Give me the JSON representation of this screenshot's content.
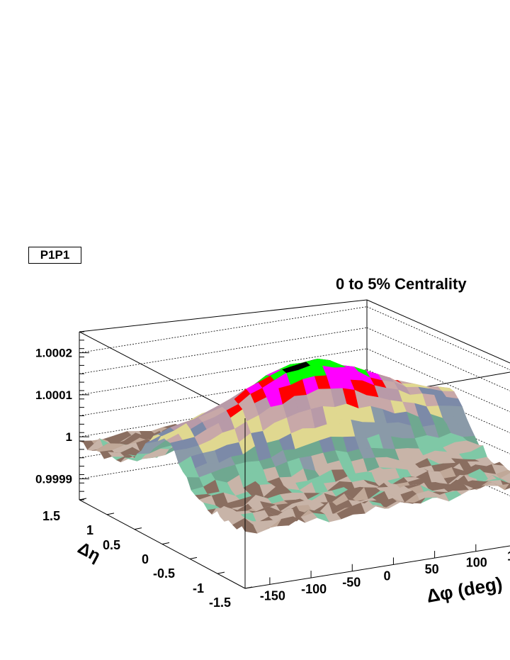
{
  "panel_label": "P1P1",
  "chart_data": {
    "type": "surface",
    "title": "0 to 5% Centrality",
    "xlabel": "Δφ (deg)",
    "ylabel": "Δη",
    "zlabel": "",
    "x_range": [
      -180,
      180
    ],
    "y_range": [
      -1.5,
      1.5
    ],
    "z_range": [
      0.99985,
      1.00025
    ],
    "x_ticks": [
      "-150",
      "-100",
      "-50",
      "0",
      "50",
      "100",
      "1"
    ],
    "y_ticks": [
      "1.5",
      "1",
      "0.5",
      "0",
      "-0.5",
      "-1",
      "-1.5"
    ],
    "z_ticks": [
      "0.9999",
      "1",
      "1.0001",
      "1.0002"
    ],
    "peak": {
      "x": 0,
      "y": 0,
      "z": 1.00023
    },
    "background_level": 0.99999,
    "band_colors": [
      "#c8c8c8",
      "#9a9a9a",
      "#3f3f3f",
      "#d8c8b0",
      "#c0a898",
      "#8a6e60",
      "#c8b4a8",
      "#7fc8a6",
      "#6fa890",
      "#8a9aa8",
      "#7c8aa8",
      "#e0d890",
      "#c8a8a8",
      "#b89aa8",
      "#ff0000",
      "#ff00ff",
      "#00ff00",
      "#000000"
    ]
  }
}
